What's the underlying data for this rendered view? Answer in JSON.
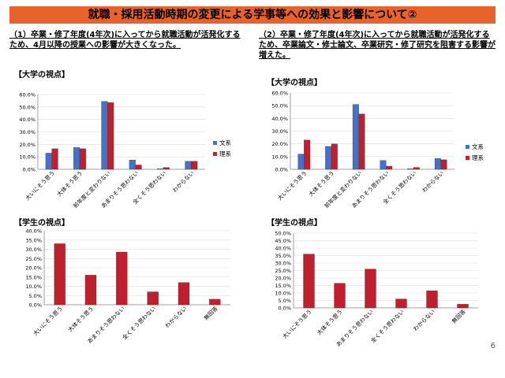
{
  "page": {
    "title": "就職・採用活動時期の変更による学事等への効果と影響について②",
    "heading_left": "（1）卒業・修了年度(4年次)に入ってから就職活動が活発化するため、4月以降の授業への影響が大きくなった。",
    "heading_right": "（2）卒業・修了年度(4年次)に入ってから就職活動が活発化するため、卒業論文・修士論文、卒業研究・修了研究を阻害する影響が増えた。",
    "university_view_label": "【大学の視点】",
    "student_view_label": "【学生の視点】",
    "page_number": "6"
  },
  "colors": {
    "humanities": "#4472c4",
    "science": "#c0202e",
    "title_bar": "#e8622c"
  },
  "chart_data": [
    {
      "type": "bar",
      "categories": [
        "大いにそう思う",
        "大体そう思う",
        "前年度と変わりない",
        "あまりそう思わない",
        "全くそう思わない",
        "わからない"
      ],
      "series": [
        {
          "name": "文系",
          "values": [
            13.0,
            17.5,
            54.5,
            7.5,
            0.5,
            6.5
          ]
        },
        {
          "name": "理系",
          "values": [
            16.5,
            16.5,
            53.5,
            3.5,
            1.5,
            6.5
          ]
        }
      ],
      "ylim": [
        0,
        60
      ],
      "yticks": [
        "0.0%",
        "10.0%",
        "20.0%",
        "30.0%",
        "40.0%",
        "50.0%",
        "60.0%"
      ],
      "legend": "right"
    },
    {
      "type": "bar",
      "categories": [
        "大いにそう思う",
        "大体そう思う",
        "前年度と変わりない",
        "あまりそう思わない",
        "全くそう思わない",
        "わからない"
      ],
      "series": [
        {
          "name": "文系",
          "values": [
            12.0,
            18.0,
            51.0,
            7.0,
            0.5,
            8.5
          ]
        },
        {
          "name": "理系",
          "values": [
            23.0,
            20.0,
            43.5,
            2.5,
            1.5,
            7.5
          ]
        }
      ],
      "ylim": [
        0,
        60
      ],
      "yticks": [
        "0.0%",
        "10.0%",
        "20.0%",
        "30.0%",
        "40.0%",
        "50.0%",
        "60.0%"
      ],
      "legend": "right"
    },
    {
      "type": "bar",
      "categories": [
        "大いにそう思う",
        "大体そう思う",
        "あまりそう思わない",
        "全くそう思わない",
        "わからない",
        "無回答"
      ],
      "series": [
        {
          "values": [
            33.0,
            16.0,
            28.5,
            7.0,
            12.0,
            3.0
          ]
        }
      ],
      "ylim": [
        0,
        40
      ],
      "yticks": [
        "0.0%",
        "5.0%",
        "10.0%",
        "15.0%",
        "20.0%",
        "25.0%",
        "30.0%",
        "35.0%",
        "40.0%"
      ]
    },
    {
      "type": "bar",
      "categories": [
        "大いにそう思う",
        "大体そう思う",
        "あまりそう思わない",
        "全くそう思わない",
        "わからない",
        "無回答"
      ],
      "series": [
        {
          "values": [
            36.0,
            16.5,
            26.0,
            6.0,
            11.5,
            2.5
          ]
        }
      ],
      "ylim": [
        0,
        50
      ],
      "yticks": [
        "0.0%",
        "5.0%",
        "10.0%",
        "15.0%",
        "20.0%",
        "25.0%",
        "30.0%",
        "35.0%",
        "40.0%",
        "45.0%",
        "50.0%"
      ]
    }
  ]
}
